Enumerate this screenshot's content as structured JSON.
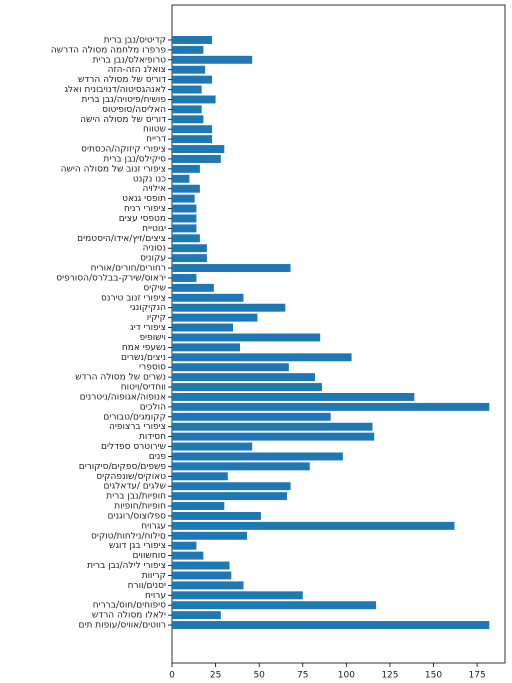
{
  "chart_data": {
    "type": "barh",
    "color": "#1f77b4",
    "categories": [
      "תירב ןבנ/סיטידק",
      "השרדה הלוסמ המחלמ ורפרפ",
      "תירב ןבנ/סלאיפורט",
      "הזה-הזה נלאוצ",
      "שדרה הלוסמ לש סירוד",
      "גלאו חינוביונד/הוטיסגהנאל",
      "תירב ןבנ/היוטיפ/חישופ",
      "סוטיפוס/הסילאה",
      "השיה הלוסמ לש סירוד",
      "חווטש",
      "חיירד",
      "סיתסכה/הקוזיק ירופיצ",
      "תירב ןבנ/סליקיס",
      "השיה הלוסמ לש בונז ירופיצ",
      "טנקנ ונכ",
      "היוליא",
      "טאנג יספות",
      "חינר ירופיצ",
      "םיצע יספטמ",
      "חייטוגי",
      "םימטסיה/ודיא/ץיז/םיציצ",
      "הינוסנ",
      "סינוקע",
      "חירוא/םירוח/םירוחר",
      "סיפרוסה/סרלבב-קריש/סוארי",
      "סיקיש",
      "סנריט בונז ירופיצ",
      "יגנוקיקנה",
      "ויקיק",
      "גיד ירופיצ",
      "פיפושיו",
      "חמא יפעשנ",
      "םירשנ/םיצינ",
      "ירפסוס",
      "שדרה הלוסמ לש םירשנ",
      "חוטיו/סידחוו",
      "םינרטינ/הופוגא/הופונא",
      "םיכלוה",
      "םירובט/םיגמוקק",
      "היפוצרב ירופיצ",
      "תודיסח",
      "םילדפס סרטוריש",
      "םינפ",
      "םירוקיס/םיקפס/םיפשפ",
      "סיקהפנוש/סיקואט",
      "םיגלאדע/ םיגלש",
      "תירב ןבנ/תויפוח",
      "תויפוח/תויפוח",
      "םינגור/סוצולפס",
      "חיורגע",
      "סיקוט/תוחלינ/חולים",
      "שגוד ןגב ירופיצ",
      "םיוושחוס",
      "תירב ןבנ/הליל ירופיצ",
      "תווירק",
      "חרוו/םינסי",
      "חיורע",
      "חיררב/סוח/םיחופיס",
      "שדרה הלוסמ ולאלי",
      "םית תופוע/סיווא/םיטוור"
    ],
    "values": [
      23,
      18,
      46,
      19,
      23,
      17,
      25,
      17,
      18,
      23,
      23,
      30,
      28,
      16,
      10,
      16,
      13,
      14,
      14,
      14,
      16,
      20,
      20,
      68,
      14,
      24,
      41,
      65,
      49,
      35,
      85,
      39,
      103,
      67,
      82,
      86,
      139,
      182,
      91,
      115,
      116,
      46,
      98,
      79,
      32,
      68,
      66,
      30,
      51,
      162,
      43,
      14,
      18,
      33,
      34,
      41,
      75,
      117,
      28,
      182
    ],
    "xlim": [
      0,
      191
    ],
    "xticks": [
      0,
      25,
      50,
      75,
      100,
      125,
      150,
      175
    ]
  }
}
